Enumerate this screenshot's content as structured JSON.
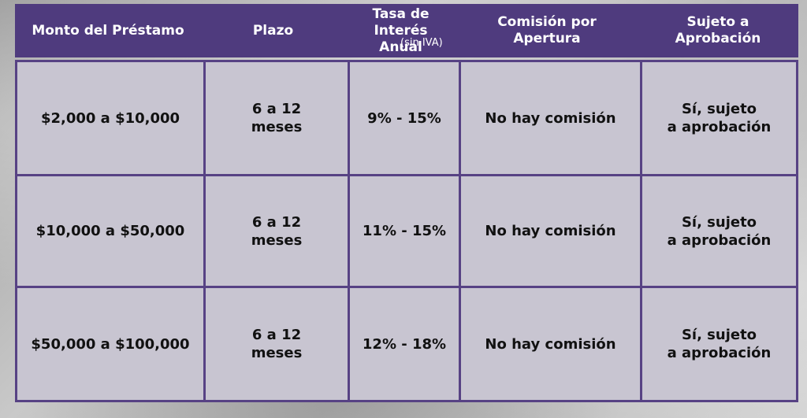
{
  "headers": {
    "col1": "Monto del Préstamo",
    "col2": "Plazo",
    "col3_main": "Tasa de Interés\nAnual",
    "col3_note": "(sin IVA)",
    "col4": "Comisión por\nApertura",
    "col5": "Sujeto a\nAprobación"
  },
  "rows": [
    {
      "monto": "$2,000 a $10,000",
      "plazo": "6 a 12\nmeses",
      "tasa": "9% - 15%",
      "comision": "No hay comisión",
      "sujeto": "Sí, sujeto\na aprobación"
    },
    {
      "monto": "$10,000 a $50,000",
      "plazo": "6 a 12\nmeses",
      "tasa": "11% - 15%",
      "comision": "No hay comisión",
      "sujeto": "Sí, sujeto\na aprobación"
    },
    {
      "monto": "$50,000 a $100,000",
      "plazo": "6 a 12\nmeses",
      "tasa": "12% - 18%",
      "comision": "No hay comisión",
      "sujeto": "Sí, sujeto\na aprobación"
    }
  ],
  "colors": {
    "header_bg": "#4f3b7e",
    "border": "#574284"
  }
}
